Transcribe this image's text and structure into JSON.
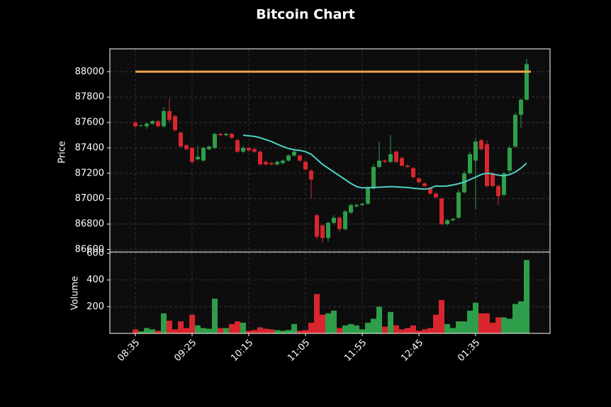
{
  "chart_data": [
    {
      "type": "candlestick",
      "title": "Bitcoin Chart",
      "ylabel": "Price",
      "open": [
        87600,
        87575,
        87570,
        87590,
        87610,
        87570,
        87690,
        87650,
        87520,
        87420,
        87400,
        87310,
        87300,
        87390,
        87400,
        87510,
        87500,
        87510,
        87460,
        87370,
        87400,
        87390,
        87370,
        87290,
        87280,
        87270,
        87280,
        87300,
        87340,
        87340,
        87290,
        87220,
        86870,
        86790,
        86690,
        86810,
        86850,
        86760,
        86890,
        86940,
        86950,
        86960,
        87080,
        87250,
        87300,
        87290,
        87370,
        87320,
        87260,
        87240,
        87160,
        87120,
        87080,
        87040,
        87000,
        86800,
        86830,
        86850,
        87050,
        87200,
        87300,
        87460,
        87430,
        87200,
        87100,
        87030,
        87220,
        87410,
        87660,
        87780
      ],
      "high": [
        87610,
        87580,
        87600,
        87620,
        87620,
        87720,
        87790,
        87660,
        87530,
        87430,
        87410,
        87420,
        87410,
        87420,
        87520,
        87520,
        87520,
        87520,
        87470,
        87420,
        87410,
        87400,
        87380,
        87300,
        87290,
        87300,
        87310,
        87350,
        87380,
        87350,
        87300,
        87230,
        86880,
        86800,
        86820,
        86870,
        86860,
        86910,
        86960,
        86960,
        86970,
        87100,
        87270,
        87450,
        87310,
        87500,
        87380,
        87330,
        87270,
        87250,
        87170,
        87130,
        87090,
        87050,
        87010,
        86840,
        86850,
        87070,
        87220,
        87370,
        87480,
        87470,
        87460,
        87210,
        87110,
        87210,
        87420,
        87680,
        87790,
        88100
      ],
      "low": [
        87560,
        87565,
        87550,
        87580,
        87560,
        87560,
        87600,
        87530,
        87400,
        87380,
        87280,
        87300,
        87290,
        87380,
        87390,
        87490,
        87490,
        87470,
        87360,
        87360,
        87370,
        87360,
        87260,
        87260,
        87260,
        87260,
        87270,
        87290,
        87330,
        87290,
        87220,
        87000,
        86680,
        86650,
        86660,
        86800,
        86740,
        86750,
        86880,
        86930,
        86940,
        86950,
        87070,
        87240,
        87280,
        87280,
        87280,
        87250,
        87240,
        87160,
        87120,
        87090,
        87030,
        87000,
        86790,
        86790,
        86820,
        86840,
        87040,
        87190,
        86920,
        87380,
        87090,
        87090,
        86950,
        87020,
        87200,
        87400,
        87560,
        87770
      ],
      "close": [
        87570,
        87578,
        87590,
        87610,
        87570,
        87690,
        87620,
        87540,
        87410,
        87390,
        87290,
        87330,
        87400,
        87410,
        87510,
        87500,
        87510,
        87480,
        87370,
        87400,
        87380,
        87370,
        87270,
        87270,
        87270,
        87290,
        87300,
        87340,
        87370,
        87300,
        87230,
        87150,
        86700,
        86690,
        86810,
        86850,
        86760,
        86900,
        86950,
        86950,
        86960,
        87080,
        87250,
        87300,
        87290,
        87350,
        87290,
        87260,
        87250,
        87170,
        87130,
        87100,
        87040,
        87010,
        86800,
        86830,
        86840,
        87050,
        87200,
        87350,
        87450,
        87390,
        87100,
        87100,
        87020,
        87200,
        87400,
        87660,
        87780,
        88060
      ],
      "up_color": "#2e9e4a",
      "down_color": "#d9262e",
      "ma": {
        "color": "#4fd1c5",
        "values": [
          null,
          null,
          null,
          null,
          null,
          null,
          null,
          null,
          null,
          null,
          null,
          null,
          null,
          null,
          null,
          null,
          null,
          null,
          null,
          87500,
          87495,
          87490,
          87480,
          87465,
          87450,
          87430,
          87410,
          87395,
          87385,
          87380,
          87370,
          87350,
          87310,
          87270,
          87240,
          87210,
          87180,
          87150,
          87120,
          87095,
          87085,
          87085,
          87088,
          87090,
          87092,
          87095,
          87093,
          87090,
          87088,
          87082,
          87078,
          87075,
          87082,
          87100,
          87098,
          87100,
          87108,
          87118,
          87130,
          87150,
          87170,
          87190,
          87200,
          87195,
          87185,
          87180,
          87190,
          87210,
          87240,
          87280
        ]
      },
      "hline": {
        "value": 88000,
        "color": "#f0a04b"
      },
      "ylim": [
        86580,
        88180
      ],
      "yticks": [
        86600,
        86800,
        87000,
        87200,
        87400,
        87600,
        87800,
        88000
      ],
      "grid": true
    },
    {
      "type": "bar",
      "ylabel": "Volume",
      "categories": [
        "08:35",
        null,
        null,
        null,
        null,
        null,
        null,
        null,
        null,
        null,
        "09:25",
        null,
        null,
        null,
        null,
        null,
        null,
        null,
        null,
        null,
        "10:15",
        null,
        null,
        null,
        null,
        null,
        null,
        null,
        null,
        null,
        "11:05",
        null,
        null,
        null,
        null,
        null,
        null,
        null,
        null,
        null,
        "11:55",
        null,
        null,
        null,
        null,
        null,
        null,
        null,
        null,
        null,
        "12:45",
        null,
        null,
        null,
        null,
        null,
        null,
        null,
        null,
        null,
        "01:35",
        null,
        null,
        null,
        null,
        null,
        null,
        null,
        null,
        null
      ],
      "values": [
        30,
        15,
        40,
        30,
        20,
        150,
        95,
        30,
        90,
        40,
        140,
        60,
        40,
        35,
        260,
        40,
        40,
        70,
        90,
        80,
        20,
        25,
        45,
        35,
        30,
        25,
        20,
        25,
        70,
        20,
        25,
        80,
        295,
        140,
        150,
        170,
        40,
        60,
        70,
        60,
        30,
        80,
        110,
        200,
        50,
        160,
        60,
        30,
        40,
        60,
        20,
        30,
        40,
        140,
        250,
        70,
        40,
        90,
        90,
        170,
        230,
        150,
        150,
        80,
        120,
        120,
        110,
        220,
        240,
        550
      ],
      "ylim": [
        0,
        610
      ],
      "yticks": [
        200,
        400,
        600
      ],
      "grid": true
    }
  ]
}
